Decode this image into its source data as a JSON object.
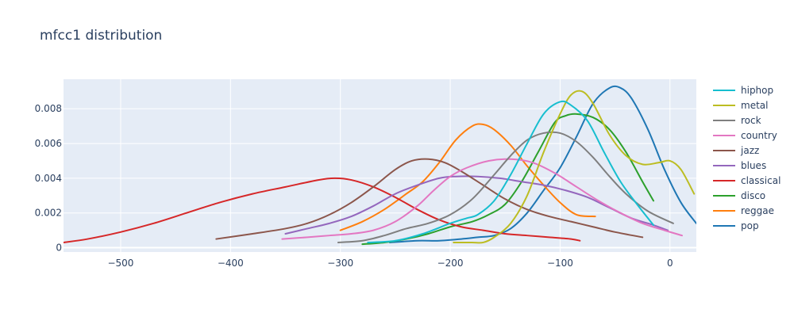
{
  "chart_data": {
    "type": "line",
    "title": "mfcc1 distribution",
    "xlabel": "",
    "ylabel": "",
    "xlim": [
      -552,
      24
    ],
    "ylim": [
      -0.00025,
      0.0097
    ],
    "x_ticks": [
      -500,
      -400,
      -300,
      -200,
      -100,
      0
    ],
    "x_tick_labels": [
      "−500",
      "−400",
      "−300",
      "−200",
      "−100",
      "0"
    ],
    "y_ticks": [
      0,
      0.002,
      0.004,
      0.006,
      0.008
    ],
    "y_tick_labels": [
      "0",
      "0.002",
      "0.004",
      "0.006",
      "0.008"
    ],
    "grid": true,
    "legend_position": "right",
    "series": [
      {
        "name": "hiphop",
        "color": "#17becf",
        "points": [
          [
            -275,
            0.0003
          ],
          [
            -250,
            0.0004
          ],
          [
            -225,
            0.0008
          ],
          [
            -200,
            0.0014
          ],
          [
            -185,
            0.0017
          ],
          [
            -175,
            0.0019
          ],
          [
            -160,
            0.0027
          ],
          [
            -145,
            0.0042
          ],
          [
            -130,
            0.006
          ],
          [
            -115,
            0.0077
          ],
          [
            -100,
            0.0084
          ],
          [
            -90,
            0.0082
          ],
          [
            -75,
            0.0073
          ],
          [
            -60,
            0.0055
          ],
          [
            -45,
            0.0038
          ],
          [
            -30,
            0.0025
          ],
          [
            -15,
            0.0013
          ]
        ]
      },
      {
        "name": "metal",
        "color": "#bcbd22",
        "points": [
          [
            -197,
            0.0003
          ],
          [
            -180,
            0.0003
          ],
          [
            -170,
            0.0003
          ],
          [
            -160,
            0.0006
          ],
          [
            -145,
            0.0014
          ],
          [
            -130,
            0.003
          ],
          [
            -115,
            0.0055
          ],
          [
            -100,
            0.0077
          ],
          [
            -90,
            0.0088
          ],
          [
            -80,
            0.009
          ],
          [
            -70,
            0.0083
          ],
          [
            -55,
            0.0065
          ],
          [
            -40,
            0.0053
          ],
          [
            -25,
            0.0048
          ],
          [
            -10,
            0.0049
          ],
          [
            0,
            0.005
          ],
          [
            10,
            0.0045
          ],
          [
            22,
            0.0031
          ]
        ]
      },
      {
        "name": "rock",
        "color": "#7f7f7f",
        "points": [
          [
            -302,
            0.0003
          ],
          [
            -280,
            0.0004
          ],
          [
            -260,
            0.0007
          ],
          [
            -240,
            0.0011
          ],
          [
            -220,
            0.0014
          ],
          [
            -200,
            0.0019
          ],
          [
            -180,
            0.0028
          ],
          [
            -160,
            0.0042
          ],
          [
            -145,
            0.0053
          ],
          [
            -130,
            0.0062
          ],
          [
            -115,
            0.0066
          ],
          [
            -100,
            0.0066
          ],
          [
            -85,
            0.0061
          ],
          [
            -70,
            0.0052
          ],
          [
            -55,
            0.0041
          ],
          [
            -40,
            0.0031
          ],
          [
            -20,
            0.0021
          ],
          [
            3,
            0.0014
          ]
        ]
      },
      {
        "name": "country",
        "color": "#e377c2",
        "points": [
          [
            -353,
            0.0005
          ],
          [
            -330,
            0.0006
          ],
          [
            -310,
            0.0007
          ],
          [
            -290,
            0.0008
          ],
          [
            -270,
            0.001
          ],
          [
            -250,
            0.0015
          ],
          [
            -230,
            0.0024
          ],
          [
            -215,
            0.0033
          ],
          [
            -200,
            0.0041
          ],
          [
            -185,
            0.0046
          ],
          [
            -165,
            0.005
          ],
          [
            -145,
            0.0051
          ],
          [
            -125,
            0.0049
          ],
          [
            -105,
            0.0043
          ],
          [
            -85,
            0.0035
          ],
          [
            -65,
            0.0027
          ],
          [
            -45,
            0.002
          ],
          [
            -25,
            0.0014
          ],
          [
            -5,
            0.001
          ],
          [
            11,
            0.0007
          ]
        ]
      },
      {
        "name": "jazz",
        "color": "#8c564b",
        "points": [
          [
            -413,
            0.0005
          ],
          [
            -380,
            0.0008
          ],
          [
            -350,
            0.0011
          ],
          [
            -330,
            0.0014
          ],
          [
            -310,
            0.0019
          ],
          [
            -290,
            0.0026
          ],
          [
            -270,
            0.0035
          ],
          [
            -250,
            0.0045
          ],
          [
            -235,
            0.005
          ],
          [
            -220,
            0.0051
          ],
          [
            -205,
            0.0049
          ],
          [
            -190,
            0.0044
          ],
          [
            -170,
            0.0036
          ],
          [
            -150,
            0.0028
          ],
          [
            -130,
            0.0022
          ],
          [
            -110,
            0.0018
          ],
          [
            -90,
            0.0015
          ],
          [
            -70,
            0.0012
          ],
          [
            -50,
            0.0009
          ],
          [
            -25,
            0.0006
          ]
        ]
      },
      {
        "name": "blues",
        "color": "#9467bd",
        "points": [
          [
            -350,
            0.0008
          ],
          [
            -330,
            0.0011
          ],
          [
            -310,
            0.0014
          ],
          [
            -290,
            0.0018
          ],
          [
            -270,
            0.0024
          ],
          [
            -250,
            0.0031
          ],
          [
            -230,
            0.0036
          ],
          [
            -210,
            0.004
          ],
          [
            -195,
            0.0041
          ],
          [
            -175,
            0.0041
          ],
          [
            -155,
            0.004
          ],
          [
            -135,
            0.0038
          ],
          [
            -115,
            0.0036
          ],
          [
            -95,
            0.0033
          ],
          [
            -75,
            0.0029
          ],
          [
            -55,
            0.0023
          ],
          [
            -35,
            0.0017
          ],
          [
            -15,
            0.0013
          ],
          [
            -2,
            0.001
          ]
        ]
      },
      {
        "name": "classical",
        "color": "#d62728",
        "points": [
          [
            -552,
            0.0003
          ],
          [
            -530,
            0.0005
          ],
          [
            -500,
            0.0009
          ],
          [
            -470,
            0.0014
          ],
          [
            -440,
            0.002
          ],
          [
            -410,
            0.0026
          ],
          [
            -380,
            0.0031
          ],
          [
            -350,
            0.0035
          ],
          [
            -320,
            0.0039
          ],
          [
            -305,
            0.004
          ],
          [
            -290,
            0.0039
          ],
          [
            -270,
            0.0035
          ],
          [
            -250,
            0.0029
          ],
          [
            -230,
            0.0022
          ],
          [
            -210,
            0.0016
          ],
          [
            -190,
            0.0012
          ],
          [
            -170,
            0.001
          ],
          [
            -150,
            0.0008
          ],
          [
            -130,
            0.0007
          ],
          [
            -110,
            0.0006
          ],
          [
            -90,
            0.0005
          ],
          [
            -82,
            0.0004
          ]
        ]
      },
      {
        "name": "disco",
        "color": "#2ca02c",
        "points": [
          [
            -280,
            0.0002
          ],
          [
            -260,
            0.0003
          ],
          [
            -240,
            0.0005
          ],
          [
            -220,
            0.0008
          ],
          [
            -200,
            0.0012
          ],
          [
            -180,
            0.0015
          ],
          [
            -165,
            0.0019
          ],
          [
            -150,
            0.0025
          ],
          [
            -135,
            0.0038
          ],
          [
            -120,
            0.0055
          ],
          [
            -105,
            0.0072
          ],
          [
            -95,
            0.0076
          ],
          [
            -85,
            0.0077
          ],
          [
            -70,
            0.0075
          ],
          [
            -55,
            0.0068
          ],
          [
            -40,
            0.0055
          ],
          [
            -25,
            0.0038
          ],
          [
            -15,
            0.0027
          ]
        ]
      },
      {
        "name": "reggae",
        "color": "#ff7f0e",
        "points": [
          [
            -300,
            0.001
          ],
          [
            -280,
            0.0015
          ],
          [
            -260,
            0.0022
          ],
          [
            -240,
            0.0031
          ],
          [
            -225,
            0.0038
          ],
          [
            -210,
            0.0049
          ],
          [
            -195,
            0.0062
          ],
          [
            -180,
            0.007
          ],
          [
            -170,
            0.0071
          ],
          [
            -160,
            0.0068
          ],
          [
            -145,
            0.0059
          ],
          [
            -130,
            0.0047
          ],
          [
            -115,
            0.0036
          ],
          [
            -100,
            0.0026
          ],
          [
            -85,
            0.0019
          ],
          [
            -68,
            0.0018
          ]
        ]
      },
      {
        "name": "pop",
        "color": "#1f77b4",
        "points": [
          [
            -255,
            0.0003
          ],
          [
            -230,
            0.0004
          ],
          [
            -210,
            0.0004
          ],
          [
            -190,
            0.0005
          ],
          [
            -175,
            0.0006
          ],
          [
            -160,
            0.0007
          ],
          [
            -145,
            0.0011
          ],
          [
            -130,
            0.002
          ],
          [
            -115,
            0.0033
          ],
          [
            -100,
            0.0046
          ],
          [
            -85,
            0.0064
          ],
          [
            -70,
            0.0083
          ],
          [
            -55,
            0.0092
          ],
          [
            -45,
            0.0092
          ],
          [
            -35,
            0.0086
          ],
          [
            -20,
            0.0068
          ],
          [
            -5,
            0.0045
          ],
          [
            10,
            0.0026
          ],
          [
            24,
            0.0014
          ]
        ]
      }
    ]
  }
}
